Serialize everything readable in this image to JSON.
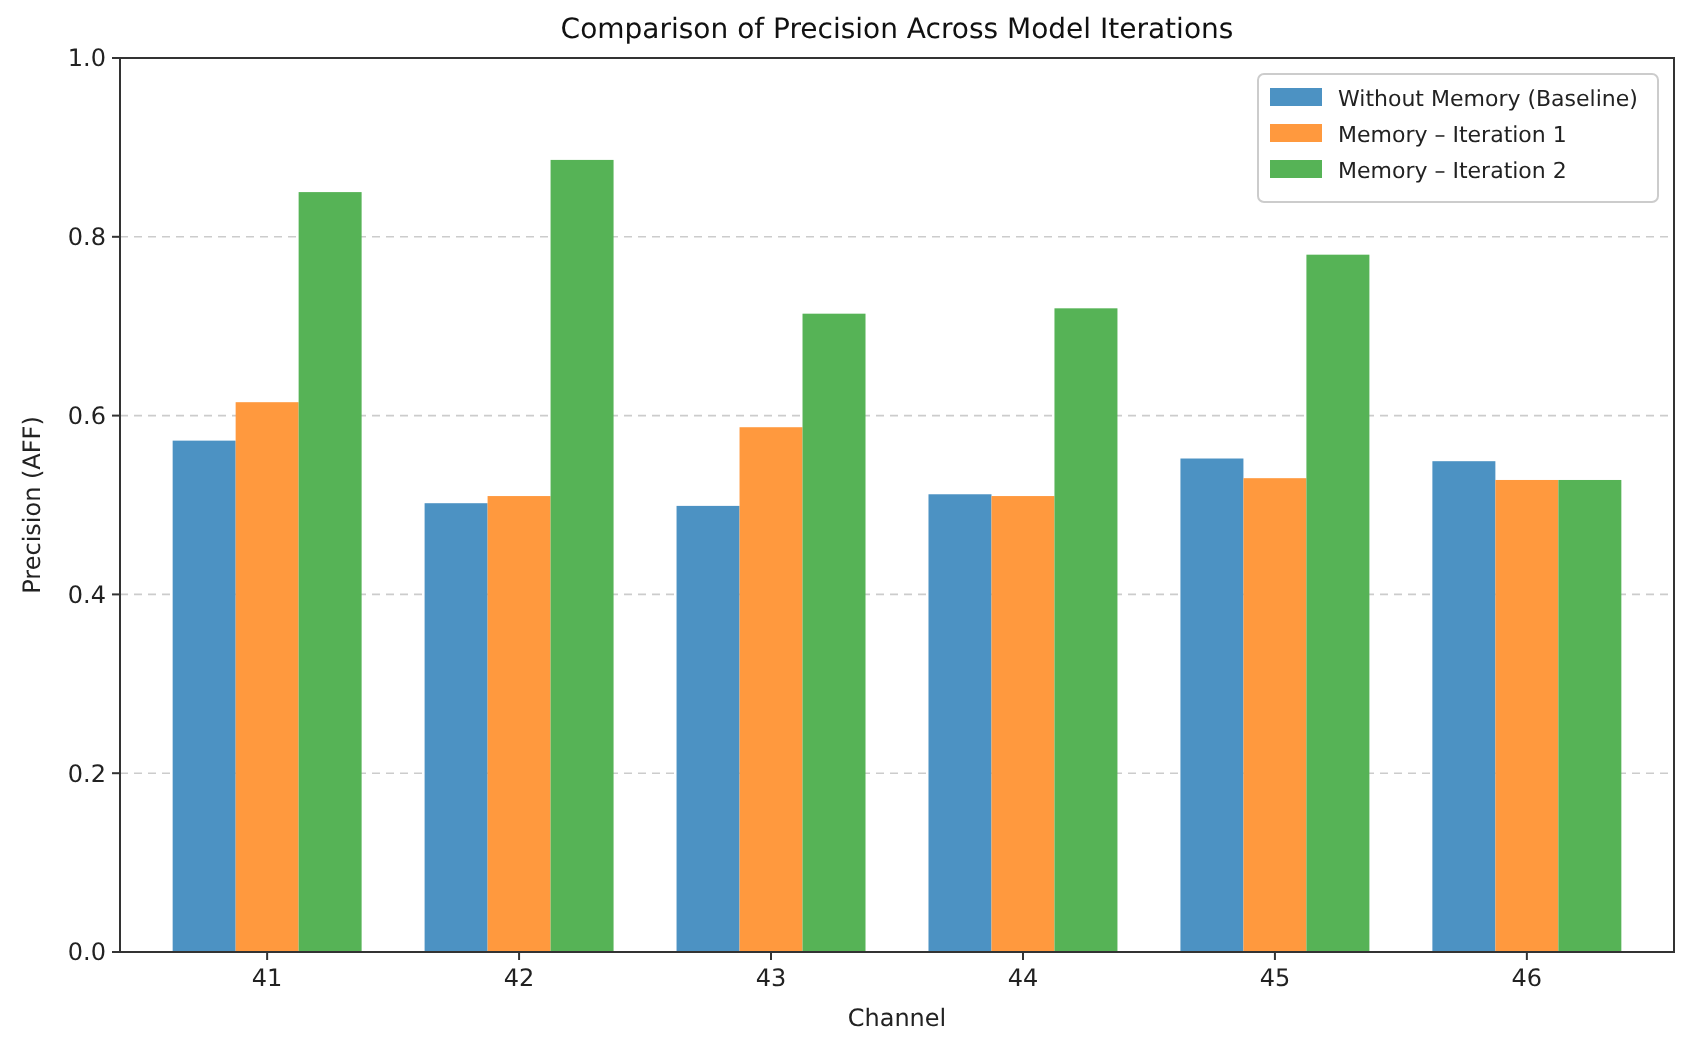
{
  "chart_data": {
    "type": "bar",
    "title": "Comparison of Precision Across Model Iterations",
    "xlabel": "Channel",
    "ylabel": "Precision (AFF)",
    "categories": [
      "41",
      "42",
      "43",
      "44",
      "45",
      "46"
    ],
    "series": [
      {
        "name": "Without Memory (Baseline)",
        "color": "#4c92c3",
        "values": [
          0.572,
          0.502,
          0.499,
          0.512,
          0.552,
          0.549
        ]
      },
      {
        "name": "Memory – Iteration 1",
        "color": "#ff993e",
        "values": [
          0.615,
          0.51,
          0.587,
          0.51,
          0.53,
          0.528
        ]
      },
      {
        "name": "Memory – Iteration 2",
        "color": "#56b356",
        "values": [
          0.85,
          0.886,
          0.714,
          0.72,
          0.78,
          0.528
        ]
      }
    ],
    "ylim": [
      0,
      1
    ],
    "yticks": [
      {
        "value": 0,
        "label": "0.0"
      },
      0.2,
      0.4,
      0.6,
      0.8,
      {
        "value": 1,
        "label": "1.0"
      }
    ],
    "grid": "y",
    "legend": "top right"
  }
}
